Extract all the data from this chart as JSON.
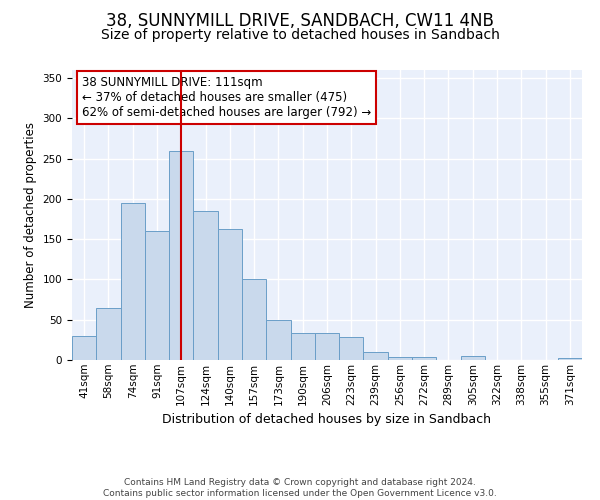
{
  "title": "38, SUNNYMILL DRIVE, SANDBACH, CW11 4NB",
  "subtitle": "Size of property relative to detached houses in Sandbach",
  "xlabel": "Distribution of detached houses by size in Sandbach",
  "ylabel": "Number of detached properties",
  "bar_labels": [
    "41sqm",
    "58sqm",
    "74sqm",
    "91sqm",
    "107sqm",
    "124sqm",
    "140sqm",
    "157sqm",
    "173sqm",
    "190sqm",
    "206sqm",
    "223sqm",
    "239sqm",
    "256sqm",
    "272sqm",
    "289sqm",
    "305sqm",
    "322sqm",
    "338sqm",
    "355sqm",
    "371sqm"
  ],
  "bar_values": [
    30,
    65,
    195,
    160,
    260,
    185,
    163,
    101,
    50,
    33,
    33,
    29,
    10,
    4,
    4,
    0,
    5,
    0,
    0,
    0,
    3
  ],
  "bar_color": "#c9d9ec",
  "bar_edge_color": "#6a9ec8",
  "reference_line_x": 4,
  "reference_line_color": "#cc0000",
  "annotation_text": "38 SUNNYMILL DRIVE: 111sqm\n← 37% of detached houses are smaller (475)\n62% of semi-detached houses are larger (792) →",
  "annotation_box_color": "#ffffff",
  "annotation_box_edge": "#cc0000",
  "ylim": [
    0,
    360
  ],
  "yticks": [
    0,
    50,
    100,
    150,
    200,
    250,
    300,
    350
  ],
  "background_color": "#eaf0fb",
  "grid_color": "#ffffff",
  "footnote": "Contains HM Land Registry data © Crown copyright and database right 2024.\nContains public sector information licensed under the Open Government Licence v3.0.",
  "title_fontsize": 12,
  "subtitle_fontsize": 10,
  "xlabel_fontsize": 9,
  "ylabel_fontsize": 8.5,
  "tick_fontsize": 7.5,
  "annotation_fontsize": 8.5,
  "footnote_fontsize": 6.5
}
